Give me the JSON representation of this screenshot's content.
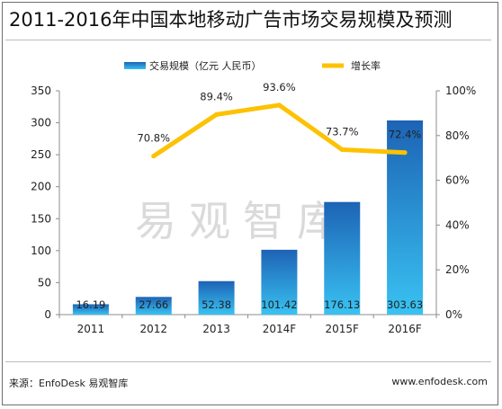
{
  "title": "2011-2016年中国本地移动广告市场交易规模及预测",
  "watermark": "易观智库",
  "source": "来源：EnfoDesk 易观智库",
  "website": "www.enfodesk.com",
  "colors": {
    "bar_top": "#1d63b5",
    "bar_bottom": "#39c2f2",
    "line": "#fcc203"
  },
  "chart_data": {
    "type": "bar",
    "categories": [
      "2011",
      "2012",
      "2013",
      "2014F",
      "2015F",
      "2016F"
    ],
    "series": [
      {
        "name": "交易规模（亿元 人民币）",
        "type": "bar",
        "axis": "left",
        "values": [
          16.19,
          27.66,
          52.38,
          101.42,
          176.13,
          303.63
        ],
        "labels": [
          "16.19",
          "27.66",
          "52.38",
          "101.42",
          "176.13",
          "303.63"
        ]
      },
      {
        "name": "增长率",
        "type": "line",
        "axis": "right",
        "values": [
          null,
          70.8,
          89.4,
          93.6,
          73.7,
          72.4
        ],
        "labels": [
          "",
          "70.8%",
          "89.4%",
          "93.6%",
          "73.7%",
          "72.4%"
        ]
      }
    ],
    "y_left": {
      "min": 0,
      "max": 350,
      "ticks": [
        "0",
        "50",
        "100",
        "150",
        "200",
        "250",
        "300",
        "350"
      ]
    },
    "y_right": {
      "min": 0,
      "max": 100,
      "ticks": [
        "0%",
        "20%",
        "40%",
        "60%",
        "80%",
        "100%"
      ]
    },
    "legend_position": "top",
    "grid": false
  }
}
